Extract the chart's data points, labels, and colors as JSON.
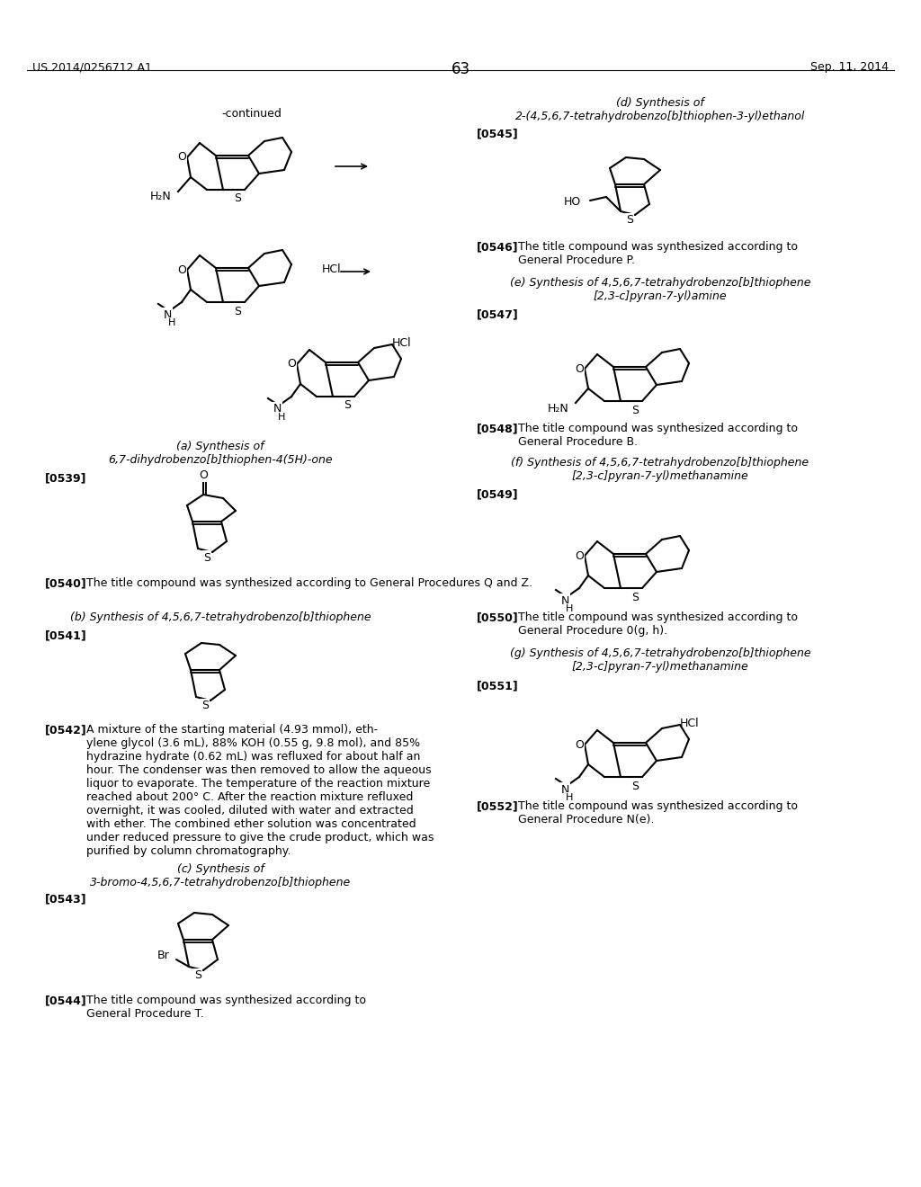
{
  "background": "#ffffff",
  "text_color": "#000000",
  "header_left": "US 2014/0256712 A1",
  "header_right": "Sep. 11, 2014",
  "page_num": "63"
}
